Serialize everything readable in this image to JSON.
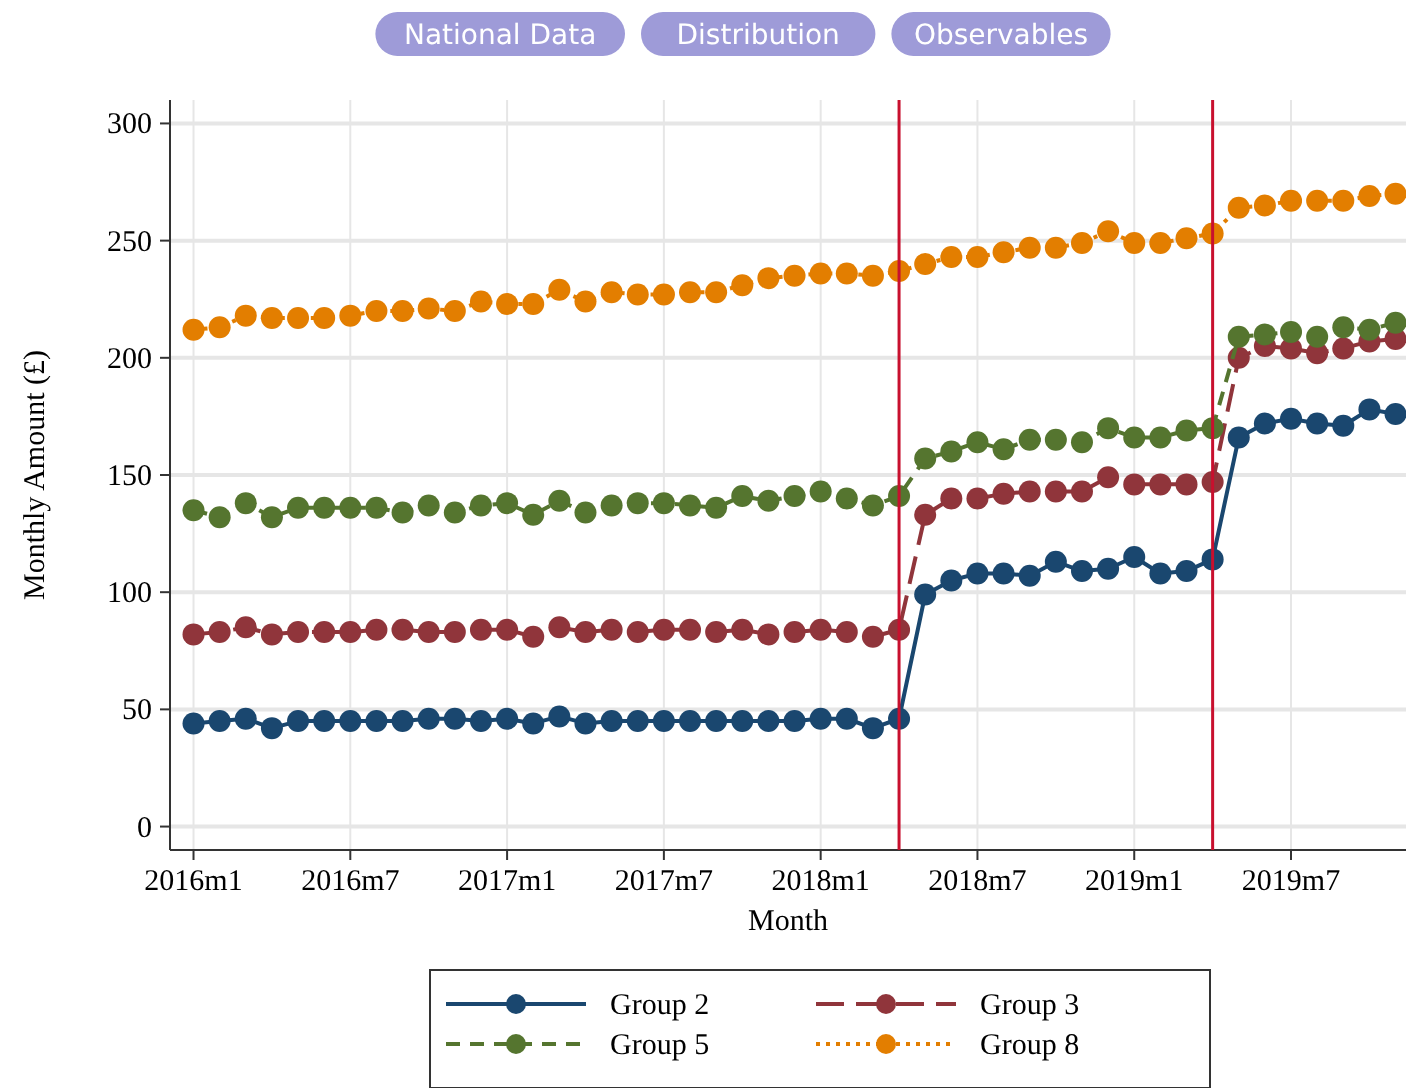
{
  "chart_data": {
    "type": "line",
    "xlabel": "Month",
    "ylabel": "Monthly Amount (£)",
    "annotations": [
      "National Data",
      "Distribution",
      "Observables"
    ],
    "x": [
      "2016-01",
      "2016-02",
      "2016-03",
      "2016-04",
      "2016-05",
      "2016-06",
      "2016-07",
      "2016-08",
      "2016-09",
      "2016-10",
      "2016-11",
      "2016-12",
      "2017-01",
      "2017-02",
      "2017-03",
      "2017-04",
      "2017-05",
      "2017-06",
      "2017-07",
      "2017-08",
      "2017-09",
      "2017-10",
      "2017-11",
      "2017-12",
      "2018-01",
      "2018-02",
      "2018-03",
      "2018-04",
      "2018-05",
      "2018-06",
      "2018-07",
      "2018-08",
      "2018-09",
      "2018-10",
      "2018-11",
      "2018-12",
      "2019-01",
      "2019-02",
      "2019-03",
      "2019-04",
      "2019-05",
      "2019-06",
      "2019-07",
      "2019-08",
      "2019-09",
      "2019-10",
      "2019-11"
    ],
    "xlim": [
      "2015-12-04",
      "2019-11-13"
    ],
    "xticks": [
      {
        "value": "2016-01",
        "label": "2016m1"
      },
      {
        "value": "2016-07",
        "label": "2016m7"
      },
      {
        "value": "2017-01",
        "label": "2017m1"
      },
      {
        "value": "2017-07",
        "label": "2017m7"
      },
      {
        "value": "2018-01",
        "label": "2018m1"
      },
      {
        "value": "2018-07",
        "label": "2018m7"
      },
      {
        "value": "2019-01",
        "label": "2019m1"
      },
      {
        "value": "2019-07",
        "label": "2019m7"
      }
    ],
    "ylim": [
      -10,
      310
    ],
    "yticks": [
      0,
      50,
      100,
      150,
      200,
      250,
      300
    ],
    "grid": true,
    "legend": "bottom",
    "marker": "circle",
    "ref_lines": [
      {
        "axis": "x",
        "value": "2018-04",
        "color": "#c8102e"
      },
      {
        "axis": "x",
        "value": "2019-04",
        "color": "#c8102e"
      }
    ],
    "series": [
      {
        "name": "Group 2",
        "color": "#1a476f",
        "line_style": "solid",
        "values": [
          44,
          45,
          46,
          42,
          45,
          45,
          45,
          45,
          45,
          46,
          46,
          45,
          46,
          44,
          47,
          44,
          45,
          45,
          45,
          45,
          45,
          45,
          45,
          45,
          46,
          46,
          42,
          46,
          99,
          105,
          108,
          108,
          107,
          113,
          109,
          110,
          115,
          108,
          109,
          114,
          166,
          172,
          174,
          172,
          171,
          178,
          176
        ]
      },
      {
        "name": "Group 3",
        "color": "#90353b",
        "line_style": "longdash",
        "values": [
          82,
          83,
          85,
          82,
          83,
          83,
          83,
          84,
          84,
          83,
          83,
          84,
          84,
          81,
          85,
          83,
          84,
          83,
          84,
          84,
          83,
          84,
          82,
          83,
          84,
          83,
          81,
          84,
          133,
          140,
          140,
          142,
          143,
          143,
          143,
          149,
          146,
          146,
          146,
          147,
          200,
          205,
          204,
          202,
          204,
          207,
          208
        ]
      },
      {
        "name": "Group 5",
        "color": "#55752f",
        "line_style": "dashed",
        "values": [
          135,
          132,
          138,
          132,
          136,
          136,
          136,
          136,
          134,
          137,
          134,
          137,
          138,
          133,
          139,
          134,
          137,
          138,
          138,
          137,
          136,
          141,
          139,
          141,
          143,
          140,
          137,
          141,
          157,
          160,
          164,
          161,
          165,
          165,
          164,
          170,
          166,
          166,
          169,
          170,
          209,
          210,
          211,
          209,
          213,
          212,
          215
        ]
      },
      {
        "name": "Group 8",
        "color": "#e37e00",
        "line_style": "dotted",
        "values": [
          212,
          213,
          218,
          217,
          217,
          217,
          218,
          220,
          220,
          221,
          220,
          224,
          223,
          223,
          229,
          224,
          228,
          227,
          227,
          228,
          228,
          231,
          234,
          235,
          236,
          236,
          235,
          237,
          240,
          243,
          243,
          245,
          247,
          247,
          249,
          254,
          249,
          249,
          251,
          253,
          264,
          265,
          267,
          267,
          267,
          269,
          270
        ]
      }
    ]
  }
}
